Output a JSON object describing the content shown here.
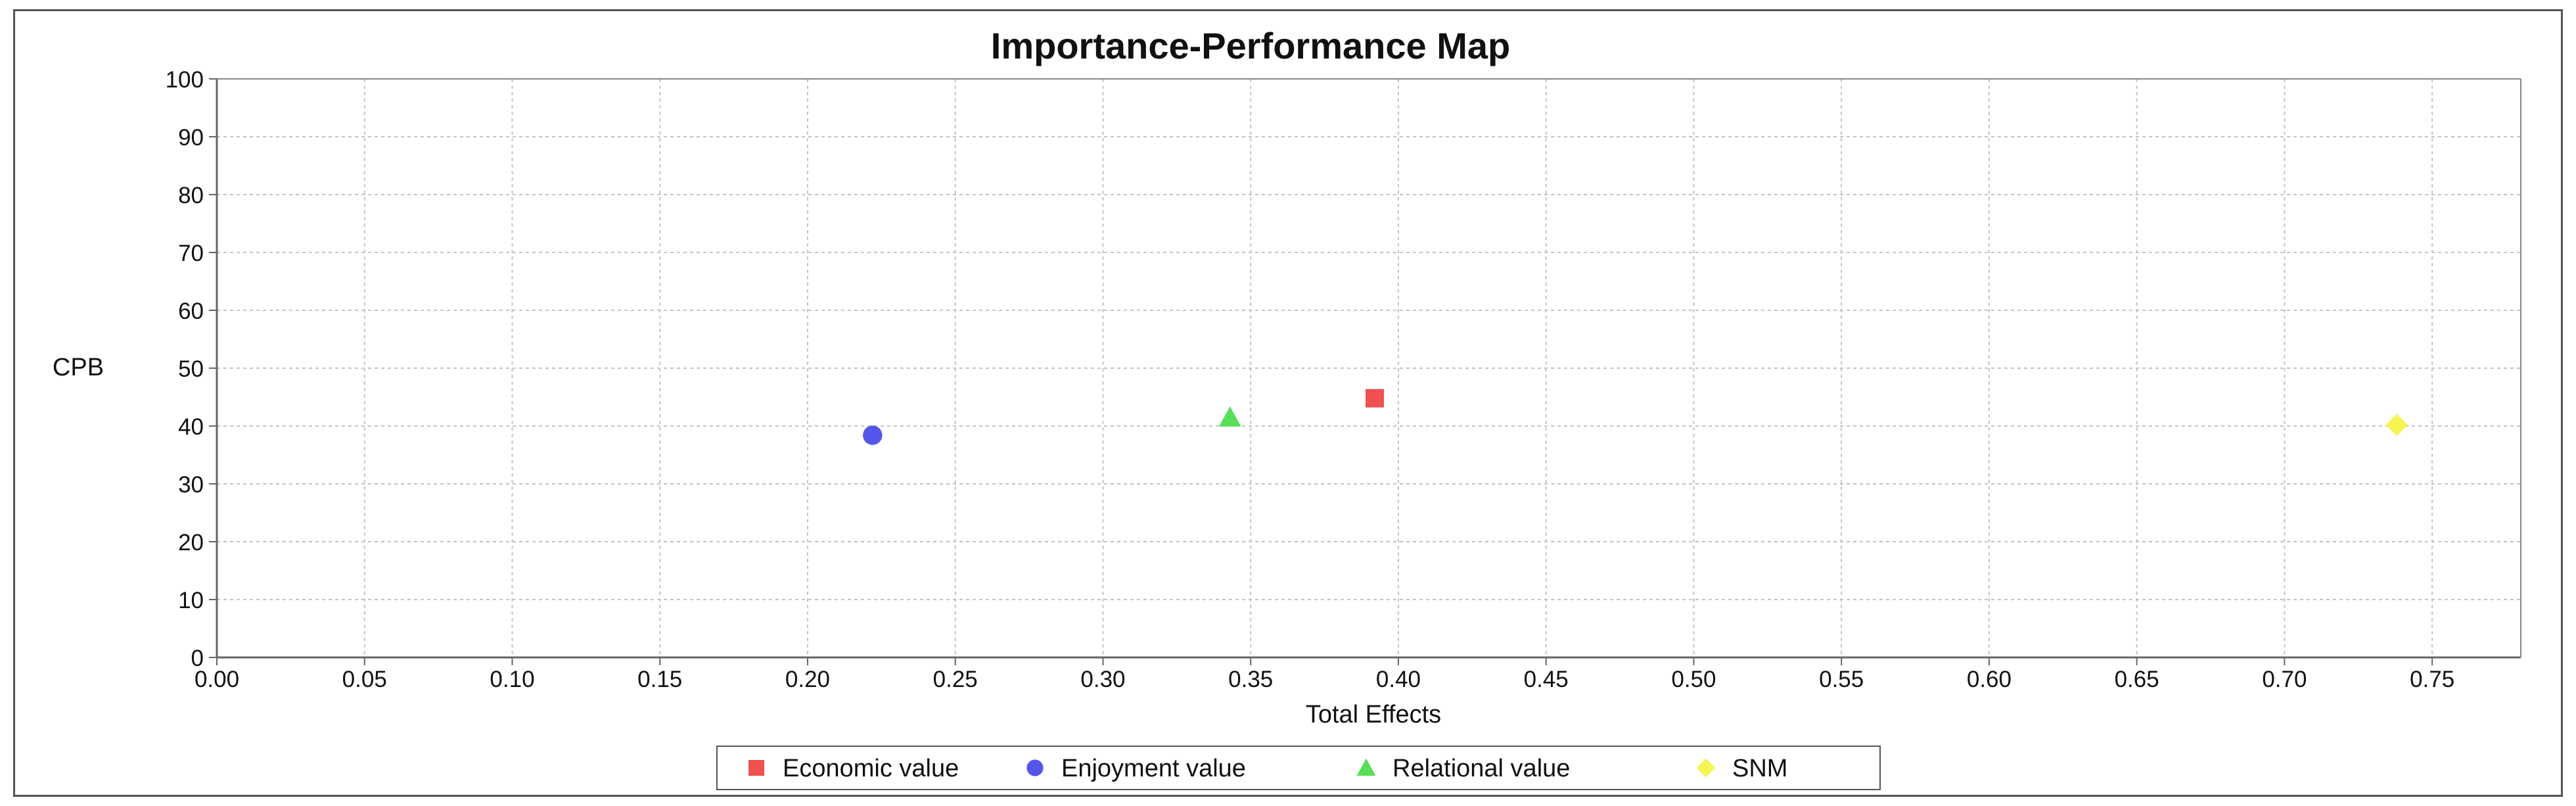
{
  "chart_data": {
    "type": "scatter",
    "title": "Importance-Performance Map",
    "xlabel": "Total Effects",
    "ylabel": "CPB",
    "xlim": [
      0,
      0.78
    ],
    "ylim": [
      0,
      100
    ],
    "xticks": [
      "0.00",
      "0.05",
      "0.10",
      "0.15",
      "0.20",
      "0.25",
      "0.30",
      "0.35",
      "0.40",
      "0.45",
      "0.50",
      "0.55",
      "0.60",
      "0.65",
      "0.70",
      "0.75"
    ],
    "yticks": [
      "0",
      "10",
      "20",
      "30",
      "40",
      "50",
      "60",
      "70",
      "80",
      "90",
      "100"
    ],
    "grid": true,
    "legend_position": "bottom",
    "series": [
      {
        "name": "Economic value",
        "marker": "square",
        "color": "#f05050",
        "x": 0.392,
        "y": 44.8
      },
      {
        "name": "Enjoyment value",
        "marker": "circle",
        "color": "#5555ee",
        "x": 0.222,
        "y": 38.4
      },
      {
        "name": "Relational value",
        "marker": "triangle",
        "color": "#55e055",
        "x": 0.343,
        "y": 41.5
      },
      {
        "name": "SNM",
        "marker": "diamond",
        "color": "#f5f550",
        "x": 0.738,
        "y": 40.2
      }
    ]
  }
}
